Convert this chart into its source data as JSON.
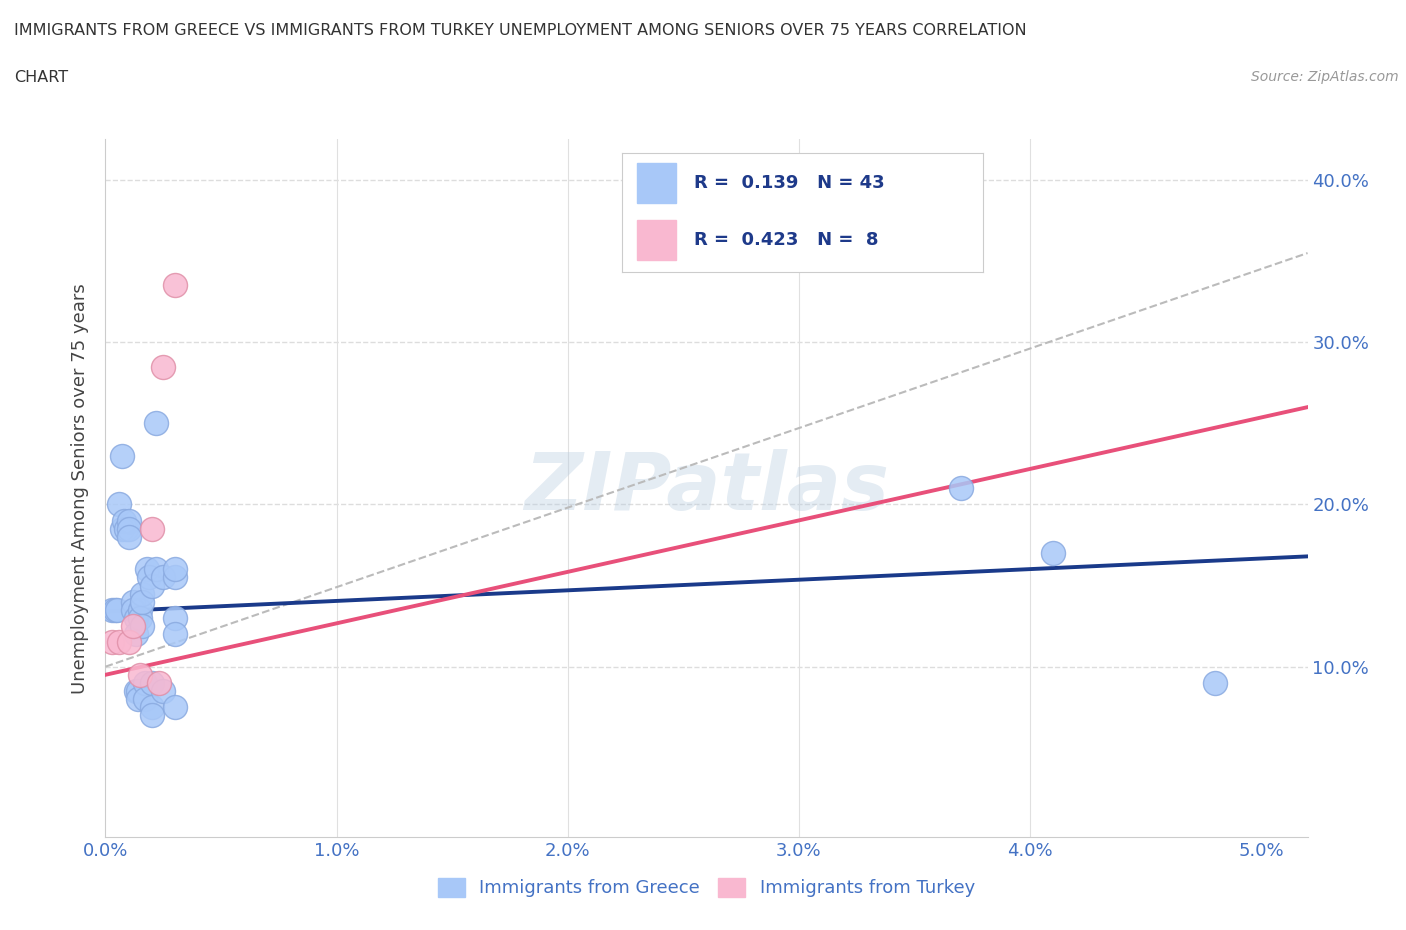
{
  "title_line1": "IMMIGRANTS FROM GREECE VS IMMIGRANTS FROM TURKEY UNEMPLOYMENT AMONG SENIORS OVER 75 YEARS CORRELATION",
  "title_line2": "CHART",
  "source": "Source: ZipAtlas.com",
  "ylabel": "Unemployment Among Seniors over 75 years",
  "xlim": [
    0.0,
    0.052
  ],
  "ylim": [
    -0.005,
    0.425
  ],
  "xticks": [
    0.0,
    0.01,
    0.02,
    0.03,
    0.04,
    0.05
  ],
  "yticks": [
    0.0,
    0.1,
    0.2,
    0.3,
    0.4
  ],
  "xticklabels": [
    "0.0%",
    "1.0%",
    "2.0%",
    "3.0%",
    "4.0%",
    "5.0%"
  ],
  "yticklabels": [
    "",
    "10.0%",
    "20.0%",
    "30.0%",
    "40.0%"
  ],
  "greece_color": "#A8C8F8",
  "turkey_color": "#F9B8D0",
  "greece_line_color": "#1A3A8A",
  "turkey_line_color": "#E8507A",
  "trend_line_color": "#BBBBBB",
  "greece_points": [
    [
      0.0003,
      0.135
    ],
    [
      0.0004,
      0.135
    ],
    [
      0.0005,
      0.135
    ],
    [
      0.0006,
      0.2
    ],
    [
      0.0007,
      0.185
    ],
    [
      0.0007,
      0.23
    ],
    [
      0.0008,
      0.19
    ],
    [
      0.0009,
      0.185
    ],
    [
      0.001,
      0.19
    ],
    [
      0.001,
      0.185
    ],
    [
      0.001,
      0.18
    ],
    [
      0.0012,
      0.14
    ],
    [
      0.0012,
      0.135
    ],
    [
      0.0013,
      0.13
    ],
    [
      0.0013,
      0.12
    ],
    [
      0.0013,
      0.085
    ],
    [
      0.0014,
      0.085
    ],
    [
      0.0014,
      0.08
    ],
    [
      0.0015,
      0.135
    ],
    [
      0.0015,
      0.13
    ],
    [
      0.0016,
      0.145
    ],
    [
      0.0016,
      0.14
    ],
    [
      0.0016,
      0.125
    ],
    [
      0.0017,
      0.09
    ],
    [
      0.0017,
      0.08
    ],
    [
      0.0018,
      0.16
    ],
    [
      0.0019,
      0.155
    ],
    [
      0.002,
      0.15
    ],
    [
      0.002,
      0.09
    ],
    [
      0.002,
      0.075
    ],
    [
      0.002,
      0.07
    ],
    [
      0.0022,
      0.25
    ],
    [
      0.0022,
      0.16
    ],
    [
      0.0025,
      0.155
    ],
    [
      0.0025,
      0.085
    ],
    [
      0.003,
      0.155
    ],
    [
      0.003,
      0.16
    ],
    [
      0.003,
      0.13
    ],
    [
      0.003,
      0.12
    ],
    [
      0.003,
      0.075
    ],
    [
      0.037,
      0.21
    ],
    [
      0.041,
      0.17
    ],
    [
      0.048,
      0.09
    ]
  ],
  "turkey_points": [
    [
      0.0003,
      0.115
    ],
    [
      0.0006,
      0.115
    ],
    [
      0.001,
      0.115
    ],
    [
      0.0012,
      0.125
    ],
    [
      0.0015,
      0.095
    ],
    [
      0.002,
      0.185
    ],
    [
      0.0023,
      0.09
    ],
    [
      0.0025,
      0.285
    ],
    [
      0.003,
      0.335
    ]
  ],
  "greece_trend_x": [
    0.0,
    0.052
  ],
  "greece_trend_y": [
    0.134,
    0.168
  ],
  "turkey_trend_x": [
    0.0,
    0.052
  ],
  "turkey_trend_y": [
    0.095,
    0.26
  ],
  "dashed_trend_x": [
    0.0,
    0.052
  ],
  "dashed_trend_y": [
    0.1,
    0.355
  ],
  "watermark": "ZIPatlas",
  "background_color": "#FFFFFF",
  "grid_color": "#E0E0E0",
  "grid_dash_color": "#DDDDDD"
}
